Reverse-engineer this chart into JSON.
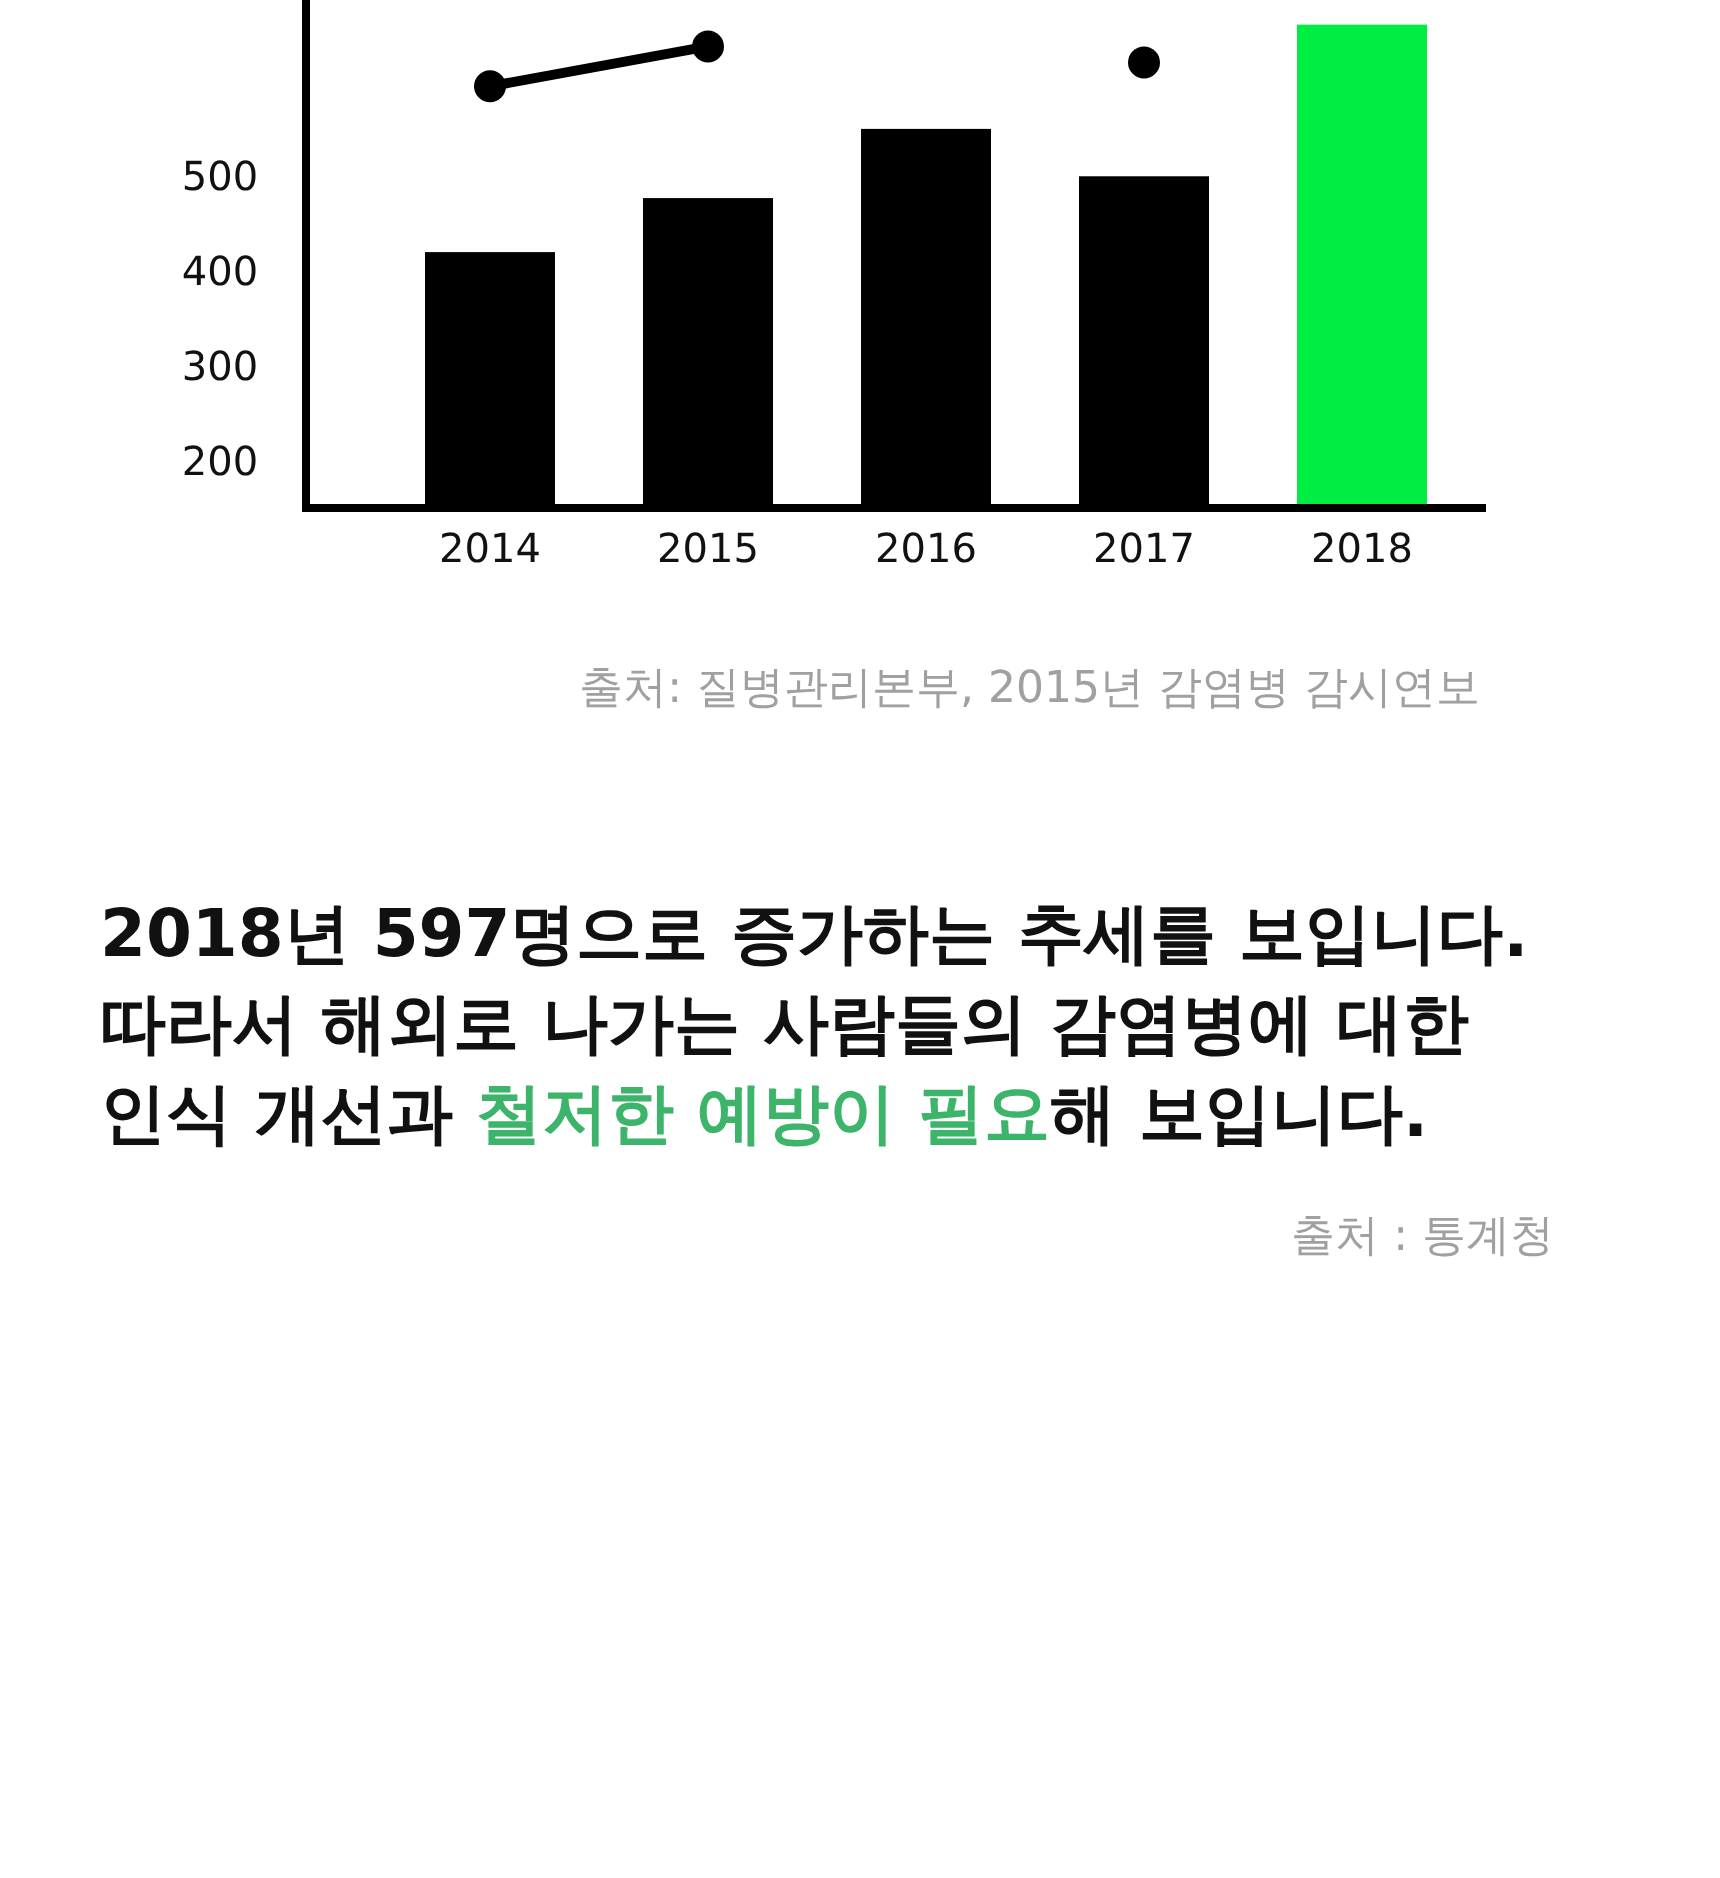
{
  "chart_data": {
    "type": "bar",
    "categories": [
      "2014",
      "2015",
      "2016",
      "2017",
      "2018"
    ],
    "series": [
      {
        "colors": [
          "#000000",
          "#000000",
          "#000000",
          "#000000",
          "#00ee44"
        ],
        "values": [
          420,
          477,
          550,
          500,
          660
        ]
      },
      {
        "type": "line",
        "color": "#000000",
        "marker": "circle",
        "values": [
          595,
          637,
          null,
          620,
          null
        ]
      }
    ],
    "ylim": [
      150,
      686
    ],
    "yticks": [
      200,
      300,
      400,
      500
    ],
    "annotations": [
      "출처: 질병관리본부, 2015년 감염병 감시연보",
      "2018년 597명으로 증가하는 추세를 보입니다.",
      "따라서 해외로 나가는 사람들의 감염병에 대한",
      "인식 개선과 ",
      "철저한 예방이 필요",
      "해 보입니다.",
      "출처 : 통계청"
    ]
  }
}
